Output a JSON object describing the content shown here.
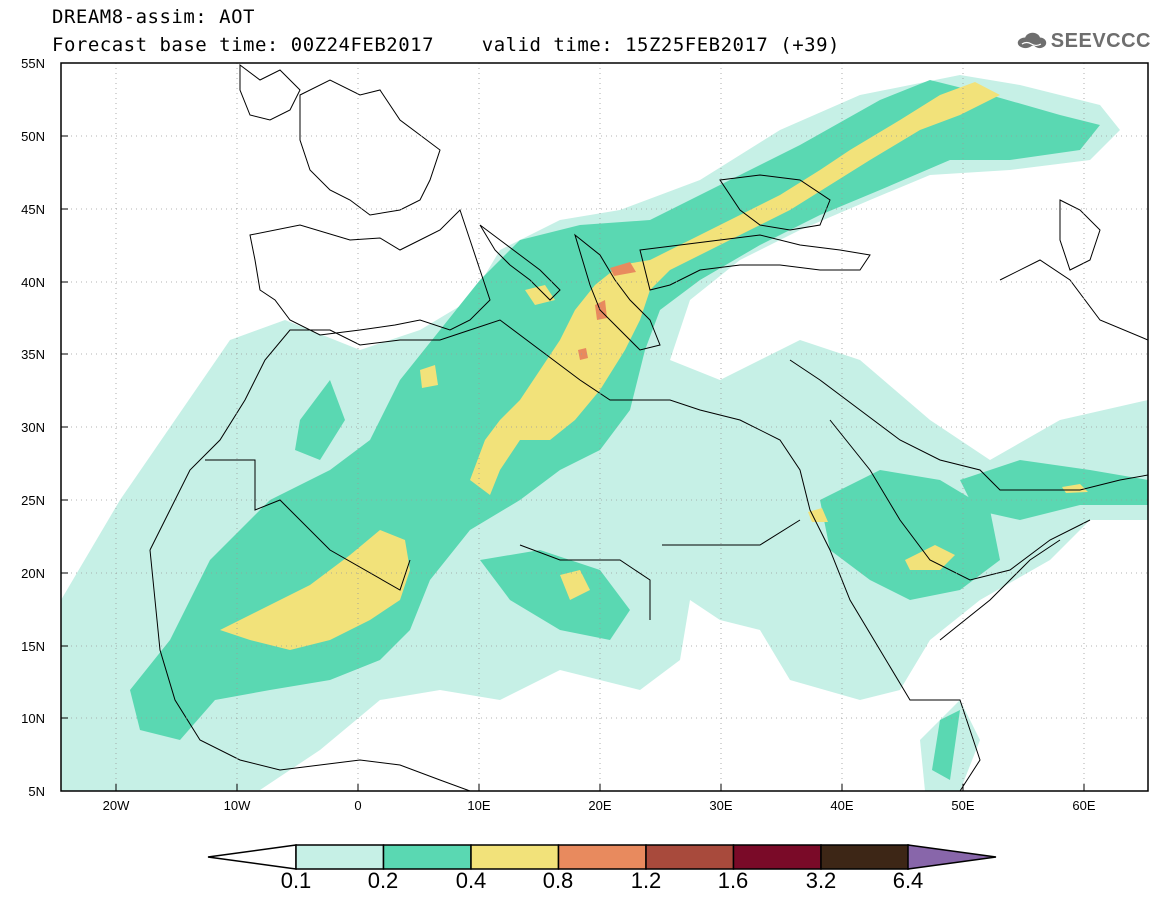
{
  "header": {
    "title_line1": "DREAM8-assim: AOT",
    "title_line2": "Forecast base time: 00Z24FEB2017    valid time: 15Z25FEB2017 (+39)"
  },
  "logo": {
    "text": "SEEVCCC",
    "icon": "cloud-icon"
  },
  "map": {
    "lon_ticks": [
      "20W",
      "10W",
      "0",
      "10E",
      "20E",
      "30E",
      "40E",
      "50E",
      "60E"
    ],
    "lat_ticks": [
      "55N",
      "50N",
      "45N",
      "40N",
      "35N",
      "30N",
      "25N",
      "20N",
      "15N",
      "10N",
      "5N"
    ],
    "extent": {
      "lon_min": -25,
      "lon_max": 65,
      "lat_min": 5,
      "lat_max": 55
    }
  },
  "colorbar": {
    "labels": [
      "0.1",
      "0.2",
      "0.4",
      "0.8",
      "1.2",
      "1.6",
      "3.2",
      "6.4"
    ],
    "colors": [
      "#c6f0e6",
      "#5ad8b2",
      "#f2e27a",
      "#e88a5e",
      "#a84a3c",
      "#7a0a28",
      "#3d2616",
      "#8866aa"
    ]
  }
}
